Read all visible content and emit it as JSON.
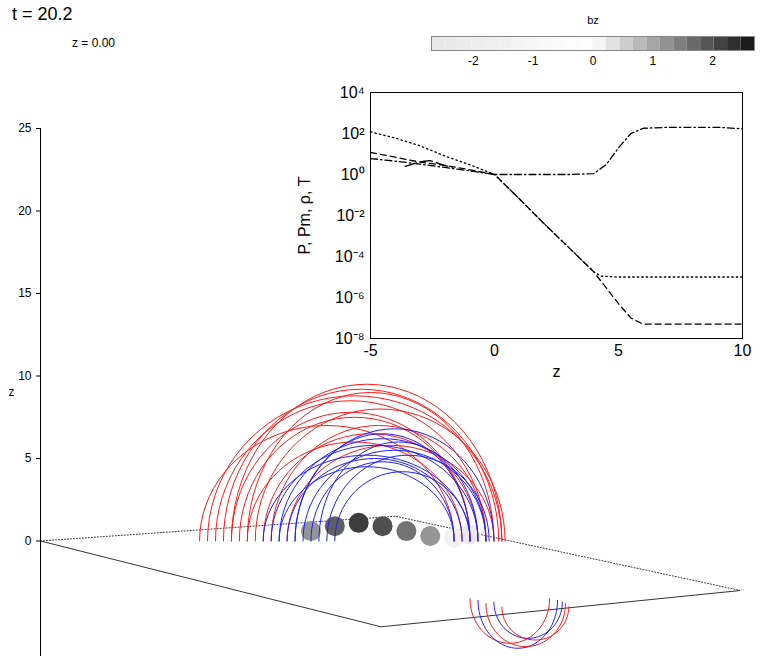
{
  "chart_data": [
    {
      "type": "line",
      "annotations": [
        "t = 20.2",
        "z = 0.00"
      ],
      "ylabel": "z",
      "xlim": [
        -22,
        22
      ],
      "ylim": [
        -7,
        25
      ],
      "yticks": [
        0,
        5,
        10,
        15,
        20,
        25
      ],
      "tick_labels": "y",
      "colorbar": {
        "label": "bz",
        "range": [
          -2.7,
          2.7
        ],
        "ticks": [
          -2,
          -1,
          0,
          1,
          2
        ]
      },
      "bz_patches": [
        {
          "x": -5,
          "z": 0.6,
          "bz": 1.2
        },
        {
          "x": -3.5,
          "z": 0.9,
          "bz": 1.8
        },
        {
          "x": -2,
          "z": 1.1,
          "bz": 2.2
        },
        {
          "x": -0.5,
          "z": 0.9,
          "bz": 2
        },
        {
          "x": 1,
          "z": 0.6,
          "bz": 1.6
        },
        {
          "x": 2.5,
          "z": 0.3,
          "bz": 1.2
        },
        {
          "x": 4,
          "z": 0.2,
          "bz": -1.5
        },
        {
          "x": 5,
          "z": 0.4,
          "bz": -2.3
        }
      ],
      "field_lines": [
        {
          "color": "#ff1a1a",
          "x0": -11,
          "x1": 6,
          "z0": 0,
          "apex": 8.5
        },
        {
          "color": "#ff1a1a",
          "x0": -10,
          "x1": 7,
          "z0": 0,
          "apex": 9.5
        },
        {
          "color": "#ff1a1a",
          "x0": -9.5,
          "x1": 5,
          "z0": 0,
          "apex": 7.5
        },
        {
          "color": "#ff1a1a",
          "x0": -9,
          "x1": 6.5,
          "z0": 0,
          "apex": 9
        },
        {
          "color": "#ff1a1a",
          "x0": -8.5,
          "x1": 7.2,
          "z0": 0,
          "apex": 8
        },
        {
          "color": "#ff1a1a",
          "x0": -8,
          "x1": 5.5,
          "z0": 0,
          "apex": 6.5
        },
        {
          "color": "#ff1a1a",
          "x0": -12,
          "x1": 4,
          "z0": 0,
          "apex": 7
        },
        {
          "color": "#ff1a1a",
          "x0": -10.5,
          "x1": 6.8,
          "z0": 0,
          "apex": 9.2
        },
        {
          "color": "#ff1a1a",
          "x0": -7.5,
          "x1": 6,
          "z0": 0,
          "apex": 7
        },
        {
          "color": "#ff1a1a",
          "x0": -11.5,
          "x1": 7,
          "z0": 0,
          "apex": 8.8
        },
        {
          "color": "#ff1a1a",
          "x0": -9,
          "x1": 4.5,
          "z0": 0,
          "apex": 6
        },
        {
          "color": "#ff1a1a",
          "x0": -6.5,
          "x1": 6.5,
          "z0": 0,
          "apex": 5.8
        },
        {
          "color": "#ff1a1a",
          "x0": -10,
          "x1": 5,
          "z0": 0,
          "apex": 7.8
        },
        {
          "color": "#2020ff",
          "x0": -8,
          "x1": 5,
          "z0": 0,
          "apex": 5.2
        },
        {
          "color": "#2020ff",
          "x0": -7.5,
          "x1": 5.5,
          "z0": 0,
          "apex": 5.8
        },
        {
          "color": "#2020ff",
          "x0": -7,
          "x1": 6,
          "z0": 0,
          "apex": 6.2
        },
        {
          "color": "#2020ff",
          "x0": -6.5,
          "x1": 4.5,
          "z0": 0,
          "apex": 5
        },
        {
          "color": "#2020ff",
          "x0": -6,
          "x1": 5,
          "z0": 0,
          "apex": 6.5
        },
        {
          "color": "#2020ff",
          "x0": -5.5,
          "x1": 6,
          "z0": 0,
          "apex": 5.5
        },
        {
          "color": "#2020ff",
          "x0": -5,
          "x1": 4,
          "z0": 0,
          "apex": 4.8
        },
        {
          "color": "#2020ff",
          "x0": -4.5,
          "x1": 5.5,
          "z0": 0,
          "apex": 6
        },
        {
          "color": "#2020ff",
          "x0": -4,
          "x1": 6.2,
          "z0": 0,
          "apex": 5.2
        },
        {
          "color": "#2020ff",
          "x0": -7,
          "x1": 4,
          "z0": 0,
          "apex": 4.5
        },
        {
          "color": "#2020ff",
          "x0": -3.5,
          "x1": 5,
          "z0": 0,
          "apex": 4.2
        },
        {
          "color": "#2020ff",
          "x0": -6,
          "x1": 6.5,
          "z0": 0,
          "apex": 6.8
        },
        {
          "color": "#ff1a1a",
          "x0": 5,
          "x1": 10,
          "z0": -3.5,
          "apex": -6.2
        },
        {
          "color": "#2020ff",
          "x0": 5.5,
          "x1": 10.5,
          "z0": -3.6,
          "apex": -6.5
        },
        {
          "color": "#ff1a1a",
          "x0": 6,
          "x1": 11,
          "z0": -3.8,
          "apex": -6.4
        },
        {
          "color": "#2020ff",
          "x0": 6.5,
          "x1": 10.8,
          "z0": -3.7,
          "apex": -5.9
        },
        {
          "color": "#ff1a1a",
          "x0": 7,
          "x1": 11.2,
          "z0": -4,
          "apex": -6
        }
      ]
    },
    {
      "type": "line",
      "xlabel": "z",
      "ylabel": "P, Pm, ρ, T",
      "log": "y",
      "xlim": [
        -5,
        10
      ],
      "ylim": [
        1e-08,
        10000
      ],
      "xticks": [
        -5,
        0,
        5,
        10
      ],
      "yticks": [
        {
          "value": 1e-08,
          "label": "10⁻⁸"
        },
        {
          "value": 1e-06,
          "label": "10⁻⁶"
        },
        {
          "value": 0.0001,
          "label": "10⁻⁴"
        },
        {
          "value": 0.01,
          "label": "10⁻²"
        },
        {
          "value": 1,
          "label": "10⁰"
        },
        {
          "value": 100,
          "label": "10²"
        },
        {
          "value": 10000,
          "label": "10⁴"
        }
      ],
      "series": [
        {
          "color": "#000000",
          "line_style": "dotted",
          "x": [
            -5,
            -4,
            -3,
            -2,
            -1,
            0,
            1,
            2,
            3,
            4,
            4.3,
            5,
            6,
            7,
            8,
            9,
            10
          ],
          "values": [
            120,
            60,
            25,
            8,
            3,
            1,
            0.065,
            0.004,
            0.00027,
            1.8e-05,
            1.1e-05,
            1e-05,
            1e-05,
            1e-05,
            1e-05,
            1e-05,
            1e-05
          ]
        },
        {
          "color": "#000000",
          "line_style": "dashed",
          "x": [
            -5,
            -4,
            -3,
            -2,
            -1,
            0,
            1,
            2,
            3,
            4,
            4.5,
            5,
            5.5,
            6,
            7,
            8,
            9,
            10
          ],
          "values": [
            12,
            7,
            4,
            2.8,
            1.7,
            1,
            0.065,
            0.004,
            0.00027,
            1.8e-05,
            3e-06,
            5e-07,
            1e-07,
            5e-08,
            5e-08,
            5e-08,
            5e-08,
            5e-08
          ]
        },
        {
          "color": "#000000",
          "line_style": "dashdot",
          "x": [
            -5,
            -4,
            -3,
            -2,
            -1,
            0,
            1,
            2,
            3,
            4,
            4.5,
            5,
            5.5,
            6,
            7,
            8,
            9,
            10
          ],
          "values": [
            6,
            4.5,
            3.2,
            2.2,
            1.5,
            1,
            1,
            1,
            1,
            1.1,
            3,
            20,
            100,
            180,
            200,
            200,
            200,
            170
          ]
        },
        {
          "color": "#000000",
          "line_style": "longdash",
          "x": [
            -3.6,
            -3.2,
            -2.9,
            -2.6,
            -2.3,
            -2,
            -1.7
          ],
          "values": [
            2.5,
            3.5,
            4.3,
            4.8,
            3.6,
            2.7,
            2.3
          ]
        }
      ]
    }
  ]
}
